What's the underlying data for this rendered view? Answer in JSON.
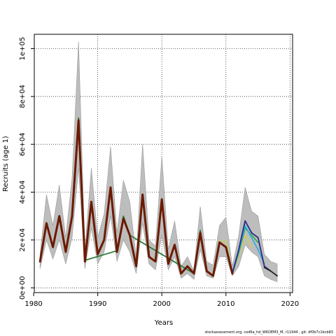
{
  "chart_data": {
    "type": "line",
    "xlabel": "Years",
    "ylabel": "Recruits (age 1)",
    "xlim": [
      1980.1,
      2020.4
    ],
    "ylim": [
      -2000,
      106000
    ],
    "x_ticks": [
      1980,
      1990,
      2000,
      2010,
      2020
    ],
    "y_ticks": [
      0,
      20000,
      40000,
      60000,
      80000,
      100000
    ],
    "y_tick_labels": [
      "0e+00",
      "2e+04",
      "4e+04",
      "6e+04",
      "8e+04",
      "1e+05"
    ],
    "grid": true,
    "grid_style": "dotted",
    "confidence_band": {
      "x": [
        1981,
        1982,
        1983,
        1984,
        1985,
        1986,
        1987,
        1988,
        1989,
        1990,
        1991,
        1992,
        1993,
        1994,
        1995,
        1996,
        1997,
        1998,
        1999,
        2000,
        2001,
        2002,
        2003,
        2004,
        2005,
        2006,
        2007,
        2008,
        2009,
        2010,
        2011,
        2012,
        2013,
        2014,
        2015,
        2016,
        2017,
        2018
      ],
      "lower": [
        8000,
        20000,
        12000,
        20000,
        10000,
        21000,
        50000,
        8000,
        25000,
        10000,
        15000,
        30000,
        11000,
        20000,
        15000,
        6000,
        27000,
        10000,
        7500,
        22000,
        7500,
        13000,
        4000,
        6000,
        3500,
        16000,
        5000,
        4000,
        13000,
        13000,
        5000,
        9000,
        18000,
        15000,
        13000,
        5000,
        3500,
        2500
      ],
      "upper": [
        14000,
        39000,
        26000,
        43000,
        21000,
        46000,
        103000,
        16000,
        50000,
        21000,
        31000,
        59000,
        23000,
        45000,
        36000,
        13000,
        60000,
        20000,
        17500,
        55000,
        16000,
        28000,
        9000,
        13000,
        7000,
        34000,
        11000,
        9500,
        26000,
        29500,
        9000,
        22000,
        42000,
        32000,
        30000,
        14000,
        11000,
        10000
      ]
    },
    "series": [
      {
        "color": "#6b1a00",
        "x": [
          1981,
          1982,
          1983,
          1984,
          1985,
          1986,
          1987,
          1988,
          1989,
          1990,
          1991,
          1992,
          1993,
          1994,
          1995,
          1996,
          1997,
          1998,
          1999,
          2000,
          2001,
          2002,
          2003,
          2004,
          2005,
          2006,
          2007,
          2008,
          2009,
          2010,
          2011
        ],
        "y": [
          11000,
          27000,
          17000,
          30000,
          15000,
          30000,
          70000,
          11000,
          36000,
          14000,
          20000,
          42000,
          15000,
          29000,
          22000,
          9000,
          39000,
          13000,
          11000,
          37000,
          10000,
          18000,
          6000,
          9000,
          6000,
          23000,
          7000,
          5000,
          19000,
          17000,
          6000
        ]
      },
      {
        "color": "#2a7a3a",
        "x": [
          1986,
          1987,
          1988,
          1993,
          1994,
          1995,
          2005,
          2006,
          2007
        ],
        "y": [
          30000,
          71000,
          11500,
          15500,
          30000,
          22000,
          6000,
          24000,
          7000
        ]
      },
      {
        "color": "#c8cc66",
        "x": [
          2008,
          2009,
          2010,
          2011,
          2012,
          2013,
          2014
        ],
        "y": [
          5000,
          19500,
          19500,
          6500,
          13000,
          22000,
          17000
        ]
      },
      {
        "color": "#3aaa4a",
        "x": [
          2010,
          2011,
          2012,
          2013,
          2014,
          2015
        ],
        "y": [
          17000,
          6000,
          14500,
          25000,
          22000,
          19000
        ]
      },
      {
        "color": "#30b0e0",
        "x": [
          2011,
          2012,
          2013,
          2014,
          2015,
          2016
        ],
        "y": [
          6000,
          15000,
          26000,
          21000,
          16000,
          10000
        ]
      },
      {
        "color": "#2a2a88",
        "x": [
          2011,
          2012,
          2013,
          2014,
          2015,
          2016,
          2017
        ],
        "y": [
          6000,
          16000,
          28000,
          23000,
          21000,
          9000,
          7000
        ]
      },
      {
        "color": "#222222",
        "x": [
          2016,
          2017,
          2018
        ],
        "y": [
          8500,
          7000,
          5000
        ]
      }
    ]
  },
  "footer_text": "stockassessment.org, cod6a_hd_WKDEM3_M, r11944 , git: df0b7c1bcb83"
}
